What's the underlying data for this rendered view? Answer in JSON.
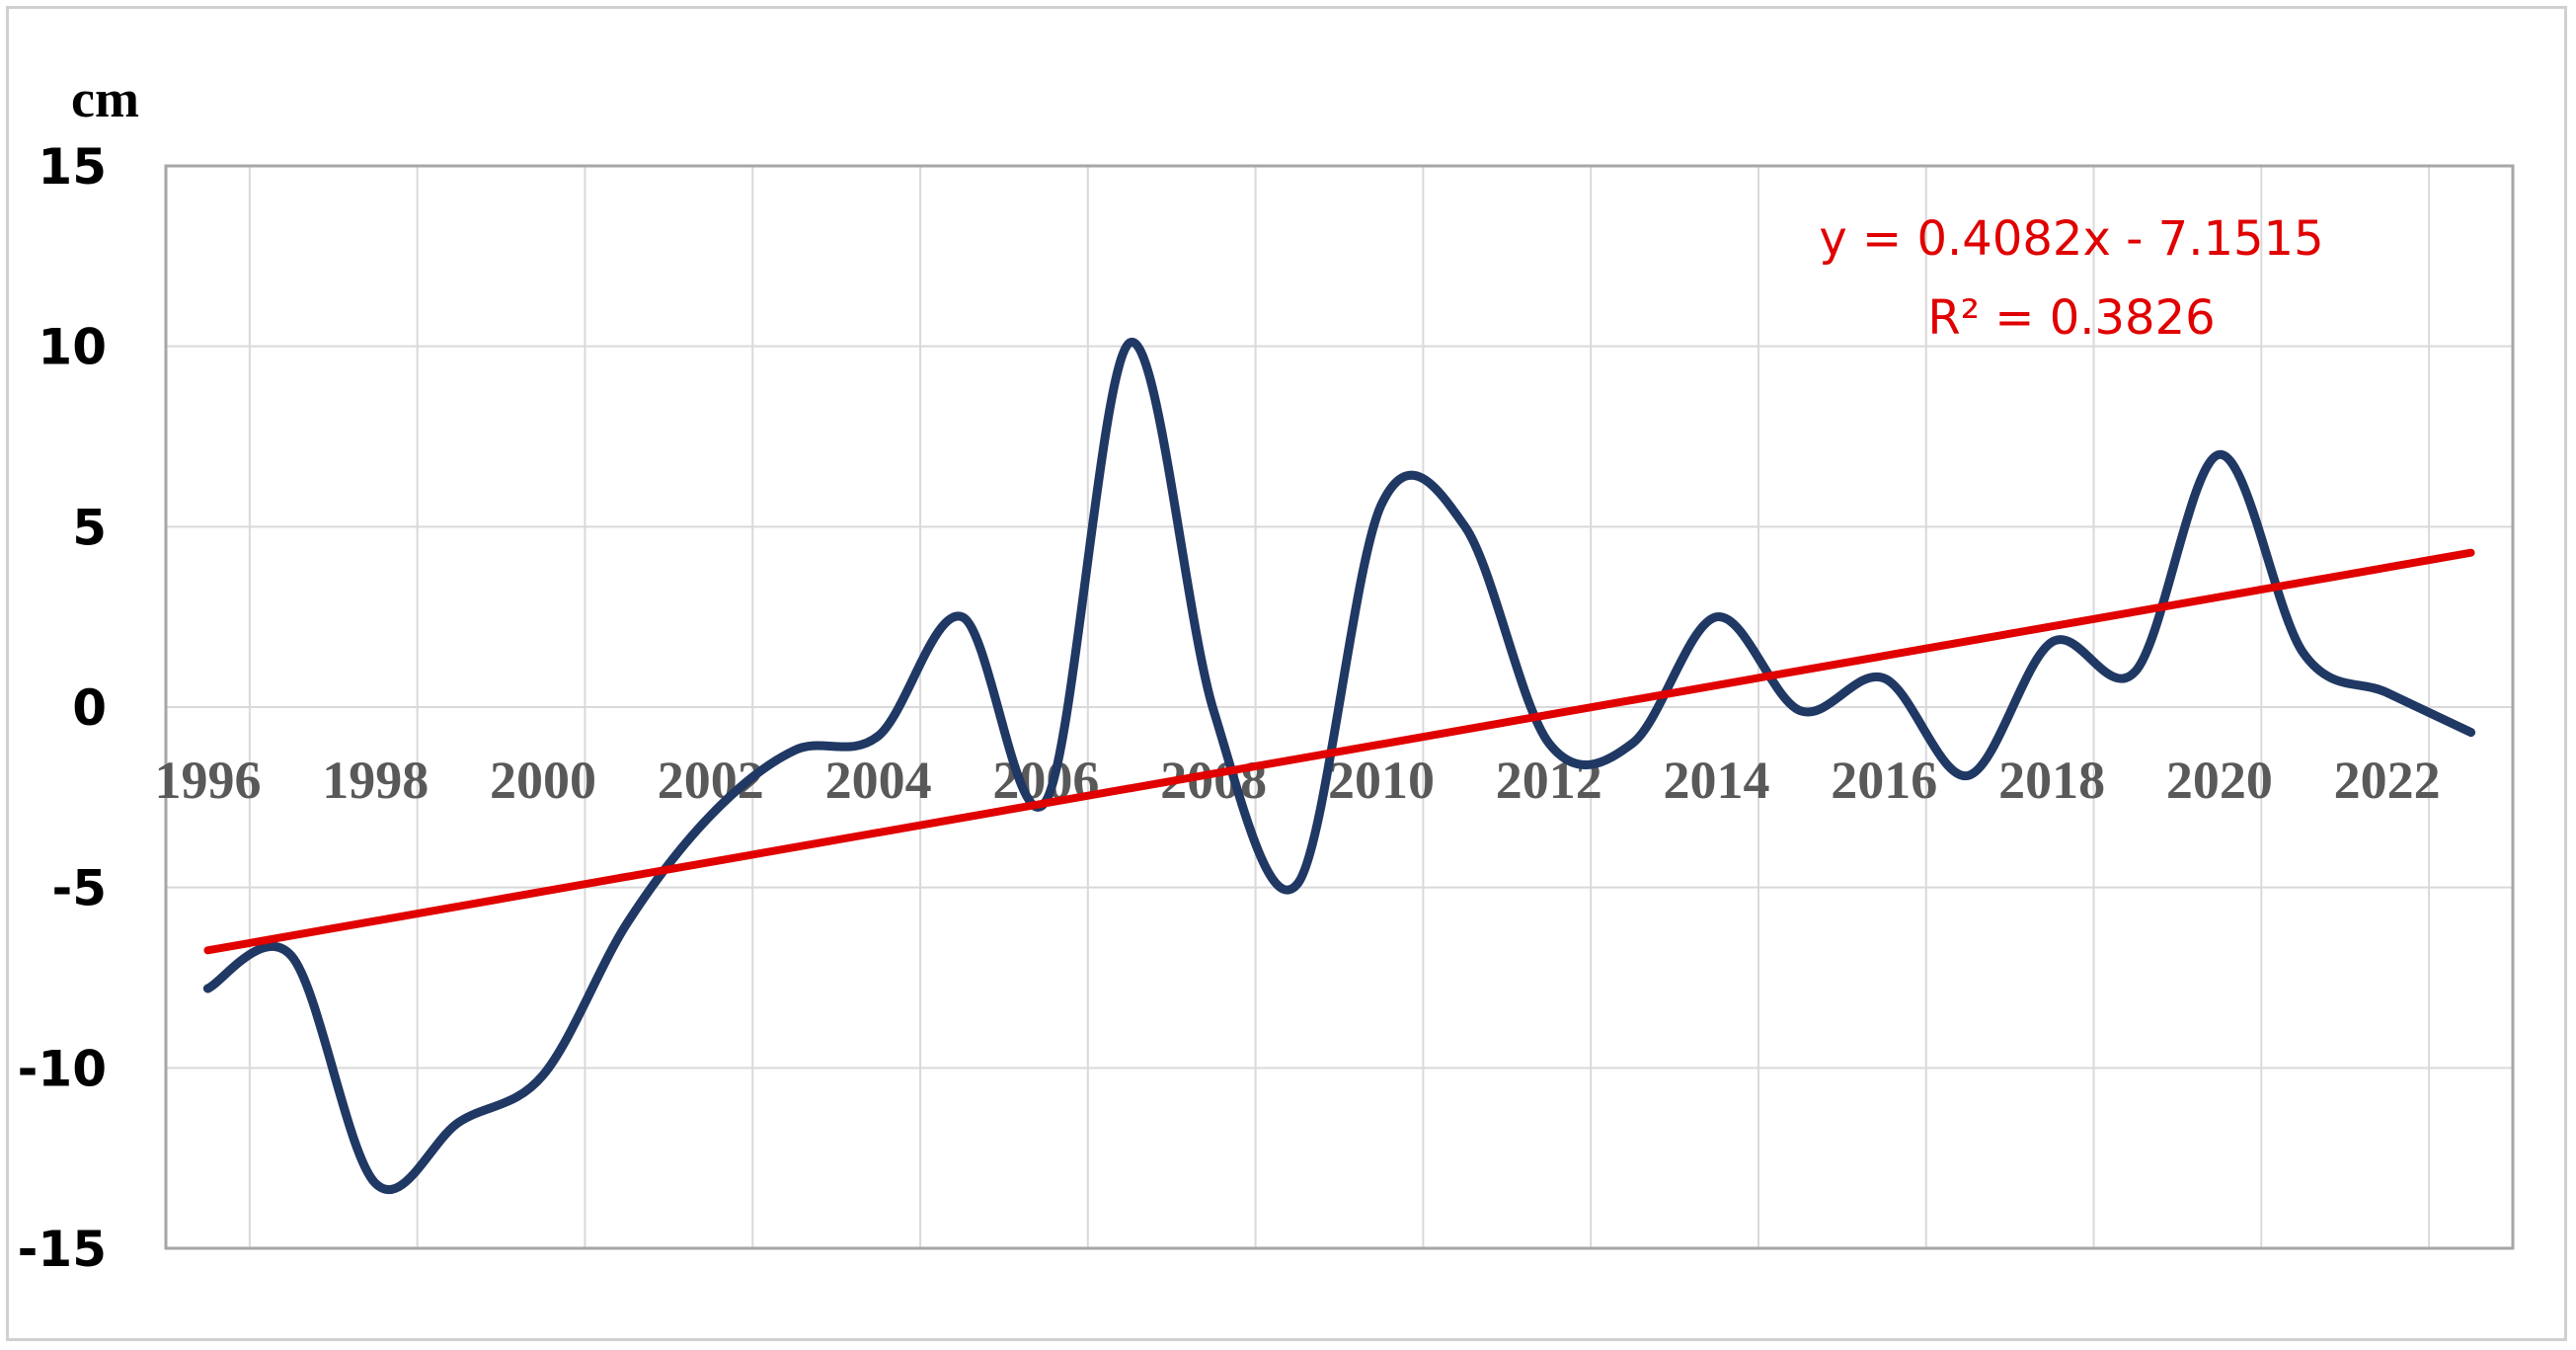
{
  "chart_data": {
    "type": "line",
    "title": "",
    "xlabel": "",
    "ylabel": "cm",
    "ylim": [
      -15,
      15
    ],
    "xlim": [
      1996,
      2023
    ],
    "yticks": [
      "15",
      "10",
      "5",
      "0",
      "-5",
      "-10",
      "-15"
    ],
    "xticks": [
      "1996",
      "1998",
      "2000",
      "2002",
      "2004",
      "2006",
      "2008",
      "2010",
      "2012",
      "2014",
      "2016",
      "2018",
      "2020",
      "2022"
    ],
    "grid": true,
    "legend": "none",
    "series": [
      {
        "color": "#203864",
        "smooth": true,
        "x": [
          1996,
          1997,
          1998,
          1999,
          2000,
          2001,
          2002,
          2003,
          2004,
          2005,
          2006,
          2007,
          2008,
          2009,
          2010,
          2011,
          2012,
          2013,
          2014,
          2015,
          2016,
          2017,
          2018,
          2019,
          2020,
          2021,
          2022,
          2023
        ],
        "y": [
          -7.8,
          -6.9,
          -13.2,
          -11.5,
          -10.2,
          -6.0,
          -3.0,
          -1.2,
          -0.8,
          2.5,
          -2.6,
          10.1,
          -0.1,
          -4.9,
          5.6,
          5.0,
          -1.0,
          -1.0,
          2.5,
          -0.1,
          0.8,
          -1.9,
          1.8,
          1.0,
          7.0,
          1.5,
          0.4,
          -0.7
        ]
      }
    ],
    "trendline": {
      "color": "#e00000",
      "slope": 0.4082,
      "intercept": -7.1515,
      "equation": "y = 0.4082x - 7.1515",
      "r2": "R² = 0.3826"
    }
  }
}
